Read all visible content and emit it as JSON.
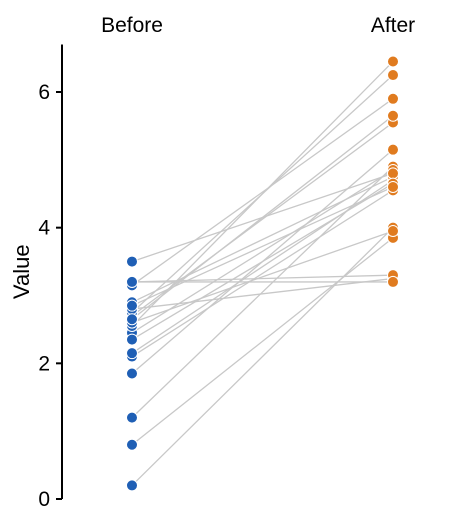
{
  "chart_data": {
    "type": "scatter",
    "subtype": "paired-dot",
    "categories": [
      "Before",
      "After"
    ],
    "ylabel": "Value",
    "ylim": [
      0,
      6.7
    ],
    "yticks": [
      0,
      2,
      4,
      6
    ],
    "colors": {
      "Before": "#1f5fb5",
      "After": "#e07b1f",
      "lines": "#c8c8c8",
      "axis": "#000000"
    },
    "pairs": [
      {
        "before": 0.2,
        "after": 4.0
      },
      {
        "before": 0.8,
        "after": 3.85
      },
      {
        "before": 1.2,
        "after": 4.9
      },
      {
        "before": 1.85,
        "after": 5.15
      },
      {
        "before": 2.1,
        "after": 4.55
      },
      {
        "before": 2.15,
        "after": 4.7
      },
      {
        "before": 2.45,
        "after": 4.85
      },
      {
        "before": 2.55,
        "after": 6.45
      },
      {
        "before": 2.6,
        "after": 3.95
      },
      {
        "before": 2.7,
        "after": 5.55
      },
      {
        "before": 2.75,
        "after": 6.25
      },
      {
        "before": 2.8,
        "after": 3.25
      },
      {
        "before": 2.9,
        "after": 4.75
      },
      {
        "before": 3.15,
        "after": 5.9
      },
      {
        "before": 3.2,
        "after": 3.3
      },
      {
        "before": 3.2,
        "after": 3.2
      },
      {
        "before": 3.5,
        "after": 4.8
      },
      {
        "before": 2.65,
        "after": 5.65
      },
      {
        "before": 2.35,
        "after": 4.65
      },
      {
        "before": 2.85,
        "after": 4.6
      }
    ]
  }
}
